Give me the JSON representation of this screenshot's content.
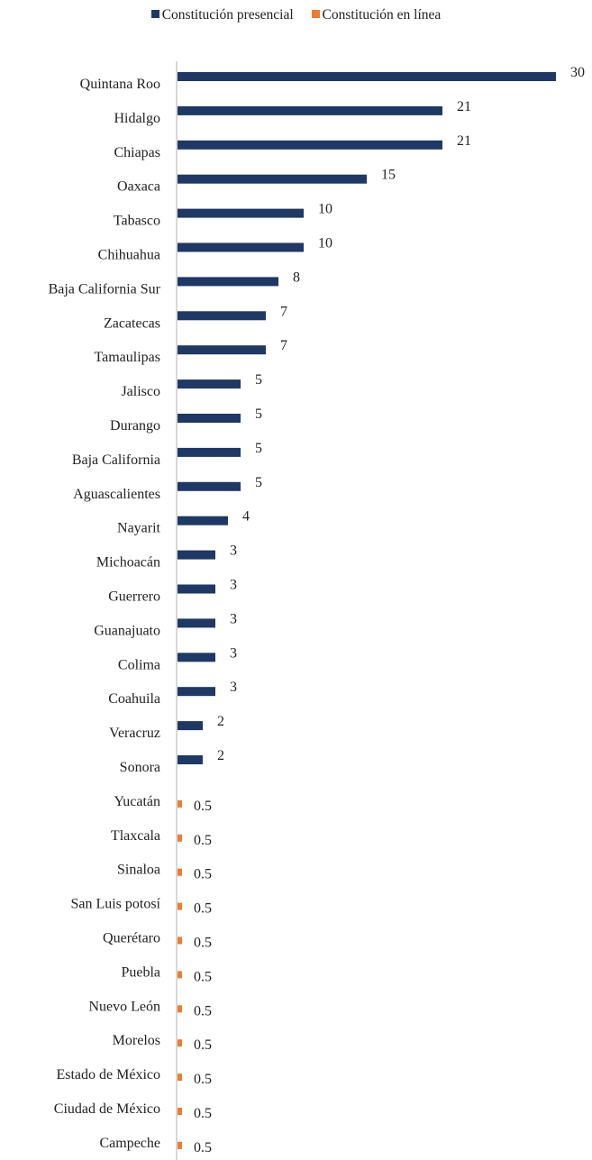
{
  "chart_data": {
    "type": "bar",
    "orientation": "horizontal",
    "legend_position": "top",
    "grid": false,
    "xlim": [
      0,
      30
    ],
    "series": [
      {
        "name": "Constitución presencial",
        "color": "#1f3864",
        "categories": [
          "Quintana Roo",
          "Hidalgo",
          "Chiapas",
          "Oaxaca",
          "Tabasco",
          "Chihuahua",
          "Baja California Sur",
          "Zacatecas",
          "Tamaulipas",
          "Jalisco",
          "Durango",
          "Baja California",
          "Aguascalientes",
          "Nayarit",
          "Michoacán",
          "Guerrero",
          "Guanajuato",
          "Colima",
          "Coahuila",
          "Veracruz",
          "Sonora"
        ],
        "values": [
          30,
          21,
          21,
          15,
          10,
          10,
          8,
          7,
          7,
          5,
          5,
          5,
          5,
          4,
          3,
          3,
          3,
          3,
          3,
          2,
          2
        ],
        "value_labels": [
          "30",
          "21",
          "21",
          "15",
          "10",
          "10",
          "8",
          "7",
          "7",
          "5",
          "5",
          "5",
          "5",
          "4",
          "3",
          "3",
          "3",
          "3",
          "3",
          "2",
          "2"
        ]
      },
      {
        "name": "Constitución en línea",
        "color": "#ed7d31",
        "categories": [
          "Yucatán",
          "Tlaxcala",
          "Sinaloa",
          "San Luis potosí",
          "Querétaro",
          "Puebla",
          "Nuevo León",
          "Morelos",
          "Estado de México",
          "Ciudad de México",
          "Campeche"
        ],
        "values": [
          0.5,
          0.5,
          0.5,
          0.5,
          0.5,
          0.5,
          0.5,
          0.5,
          0.5,
          0.5,
          0.5
        ],
        "value_labels": [
          "0.5",
          "0.5",
          "0.5",
          "0.5",
          "0.5",
          "0.5",
          "0.5",
          "0.5",
          "0.5",
          "0.5",
          "0.5"
        ]
      }
    ]
  }
}
